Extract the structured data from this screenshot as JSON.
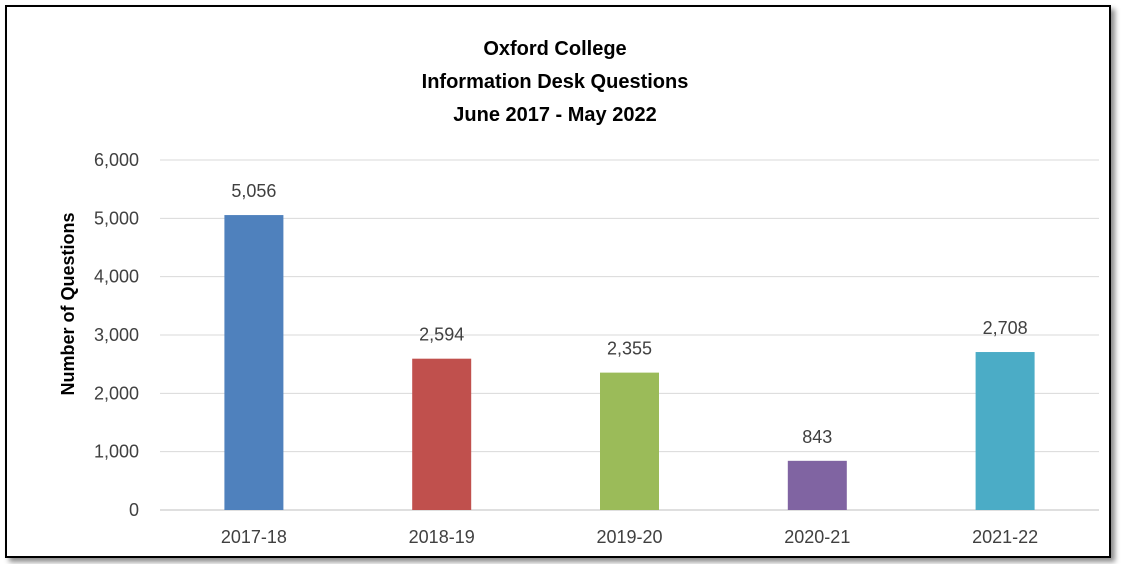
{
  "chart_data": {
    "type": "bar",
    "title": [
      "Oxford College",
      "Information Desk Questions",
      "June 2017 - May 2022"
    ],
    "xlabel": "",
    "ylabel": "Number of Questions",
    "categories": [
      "2017-18",
      "2018-19",
      "2019-20",
      "2020-21",
      "2021-22"
    ],
    "values": [
      5056,
      2594,
      2355,
      843,
      2708
    ],
    "value_labels": [
      "5,056",
      "2,594",
      "2,355",
      "843",
      "2,708"
    ],
    "colors": [
      "#4f81bd",
      "#c0504d",
      "#9bbb59",
      "#8064a2",
      "#4bacc6"
    ],
    "ylim": [
      0,
      6000
    ],
    "yticks": [
      0,
      1000,
      2000,
      3000,
      4000,
      5000,
      6000
    ],
    "ytick_labels": [
      "0",
      "1,000",
      "2,000",
      "3,000",
      "4,000",
      "5,000",
      "6,000"
    ],
    "grid": true,
    "legend": "none"
  }
}
